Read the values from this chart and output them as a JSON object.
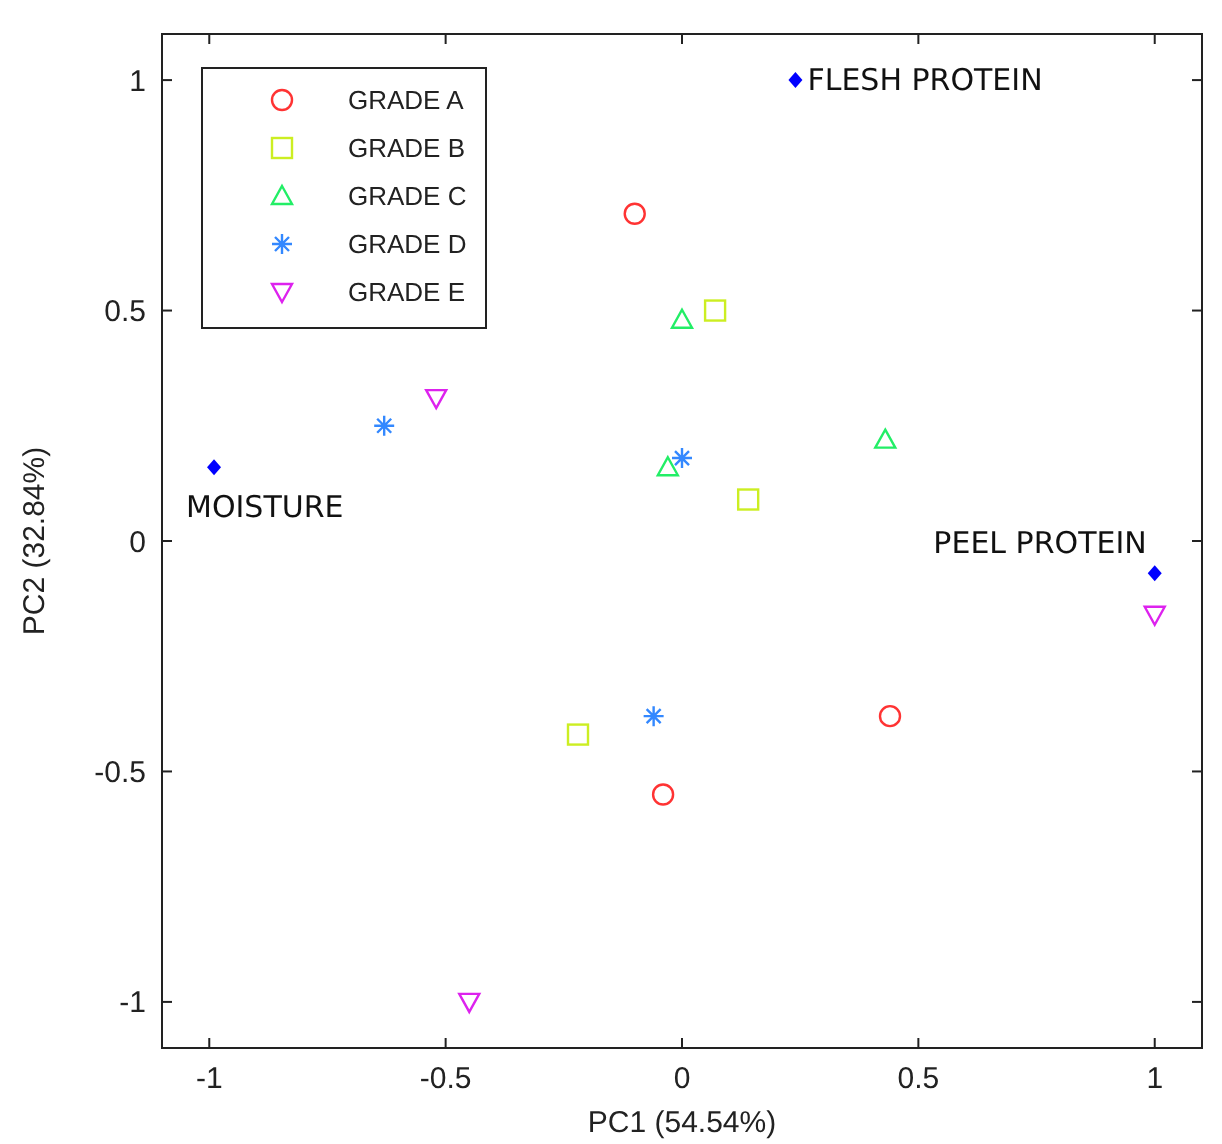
{
  "chart_data": {
    "type": "scatter",
    "xlabel": "PC1 (54.54%)",
    "ylabel": "PC2 (32.84%)",
    "xlim": [
      -1.1,
      1.1
    ],
    "ylim": [
      -1.1,
      1.1
    ],
    "xticks": [
      -1,
      -0.5,
      0,
      0.5,
      1
    ],
    "yticks": [
      -1,
      -0.5,
      0,
      0.5,
      1
    ],
    "grid": false,
    "legend": "top left",
    "series": [
      {
        "name": "GRADE A",
        "color": "#ff3333",
        "marker": "circle",
        "x": [
          -0.1,
          -0.04,
          0.44
        ],
        "values": [
          0.71,
          -0.55,
          -0.38
        ]
      },
      {
        "name": "GRADE B",
        "color": "#ccee22",
        "marker": "square",
        "x": [
          0.07,
          0.14,
          -0.22
        ],
        "values": [
          0.5,
          0.09,
          -0.42
        ]
      },
      {
        "name": "GRADE C",
        "color": "#22ee66",
        "marker": "triangle",
        "x": [
          0,
          -0.03,
          0.43
        ],
        "values": [
          0.48,
          0.16,
          0.22
        ]
      },
      {
        "name": "GRADE D",
        "color": "#3388ff",
        "marker": "cross",
        "x": [
          -0.63,
          0,
          -0.06
        ],
        "values": [
          0.25,
          0.18,
          -0.38
        ]
      },
      {
        "name": "GRADE E",
        "color": "#dd22ee",
        "marker": "triangle-down",
        "x": [
          -0.52,
          1,
          -0.45
        ],
        "values": [
          0.31,
          -0.16,
          -1
        ]
      },
      {
        "color": "#0000ff",
        "marker": "diamond",
        "x": [
          -0.99,
          0.24,
          1
        ],
        "values": [
          0.16,
          1,
          -0.07
        ]
      }
    ],
    "annotations": [
      {
        "text": "MOISTURE",
        "x": -0.99,
        "y": 0.16
      },
      {
        "text": "FLESH PROTEIN",
        "x": 0.24,
        "y": 1
      },
      {
        "text": "PEEL PROTEIN",
        "x": 1,
        "y": -0.07
      }
    ]
  }
}
